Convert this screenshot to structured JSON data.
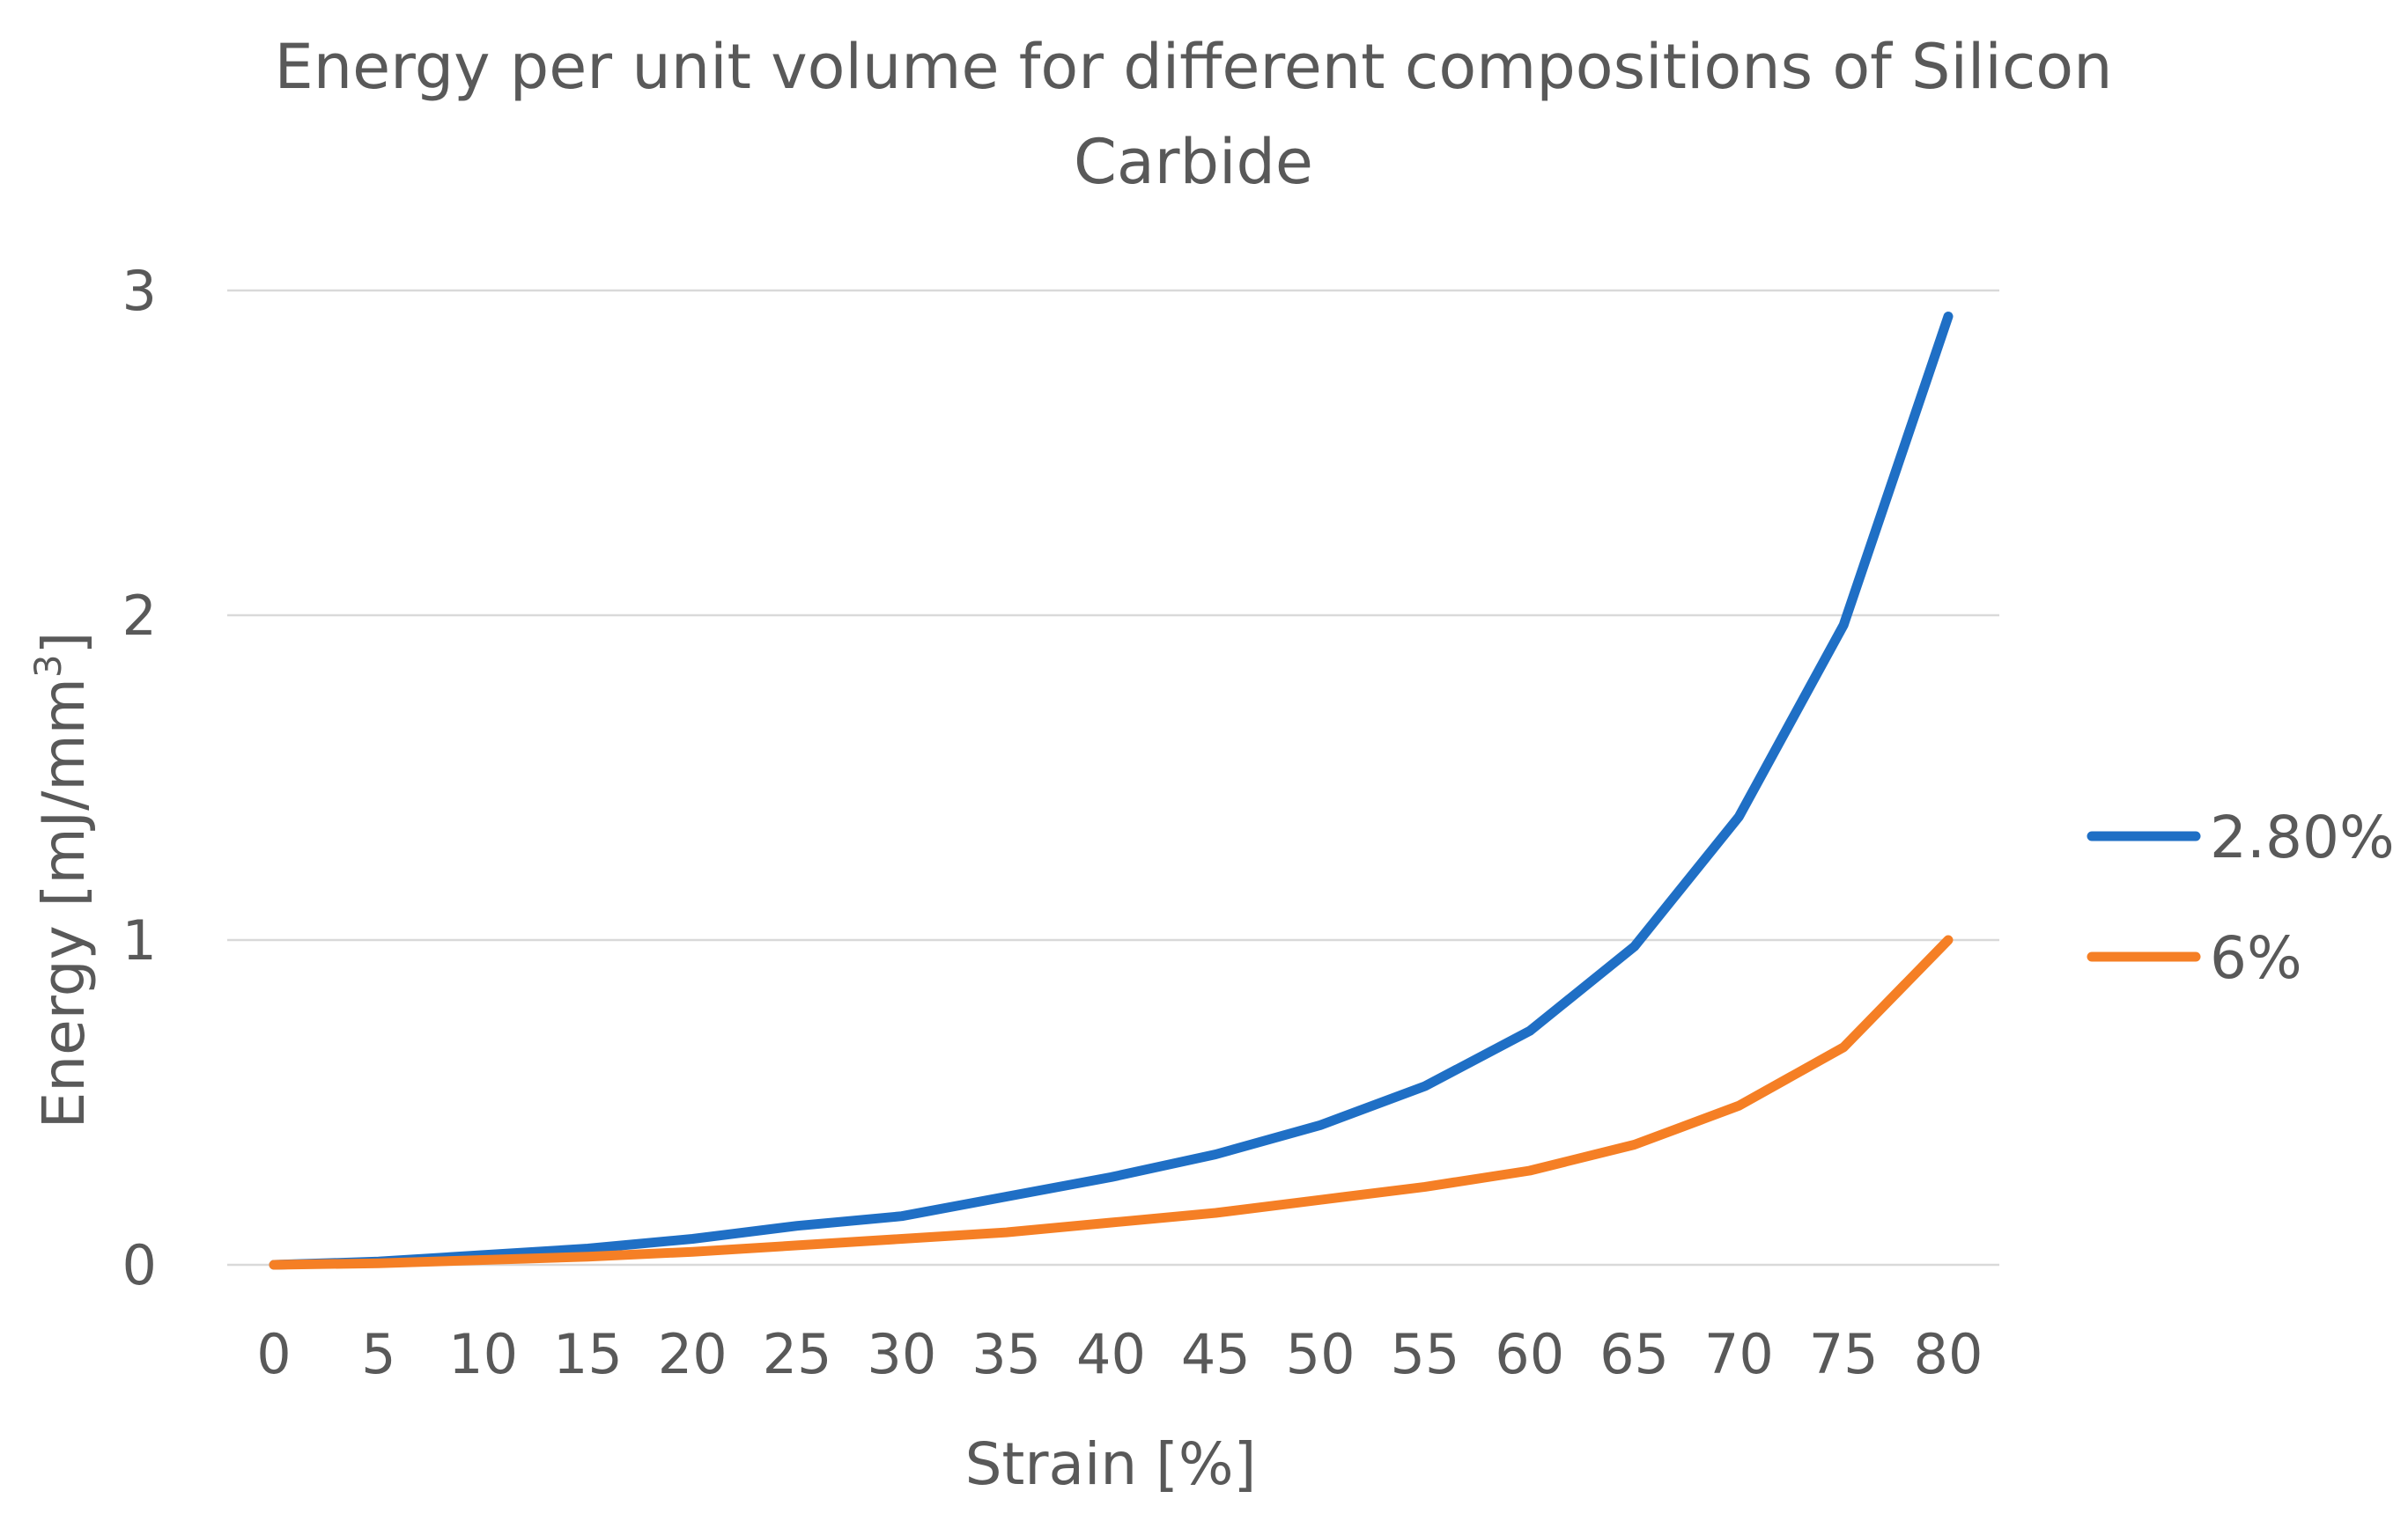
{
  "chart_data": {
    "type": "line",
    "title_lines": [
      "Energy per unit volume for different compositions of Silicon",
      "Carbide"
    ],
    "xlabel": "Strain [%]",
    "ylabel_main": "Energy [mJ/mm",
    "ylabel_sup": "3",
    "ylabel_end": "]",
    "categories": [
      "0",
      "5",
      "10",
      "15",
      "20",
      "25",
      "30",
      "35",
      "40",
      "45",
      "50",
      "55",
      "60",
      "65",
      "70",
      "75",
      "80"
    ],
    "x": [
      0,
      5,
      10,
      15,
      20,
      25,
      30,
      35,
      40,
      45,
      50,
      55,
      60,
      65,
      70,
      75,
      80
    ],
    "ylim": [
      0,
      3
    ],
    "yticks": [
      0,
      1,
      2,
      3
    ],
    "ytick_labels": [
      "0",
      "1",
      "2",
      "3"
    ],
    "grid": true,
    "legend_position": "right",
    "series": [
      {
        "name": "2.80%",
        "color": "#1F6FC5",
        "values": [
          0,
          0.01,
          0.03,
          0.05,
          0.08,
          0.12,
          0.15,
          0.21,
          0.27,
          0.34,
          0.43,
          0.55,
          0.72,
          0.98,
          1.38,
          1.97,
          2.92
        ]
      },
      {
        "name": "6%",
        "color": "#F57F25",
        "values": [
          0,
          0.005,
          0.015,
          0.025,
          0.04,
          0.06,
          0.08,
          0.1,
          0.13,
          0.16,
          0.2,
          0.24,
          0.29,
          0.37,
          0.49,
          0.67,
          1.0
        ]
      }
    ]
  }
}
